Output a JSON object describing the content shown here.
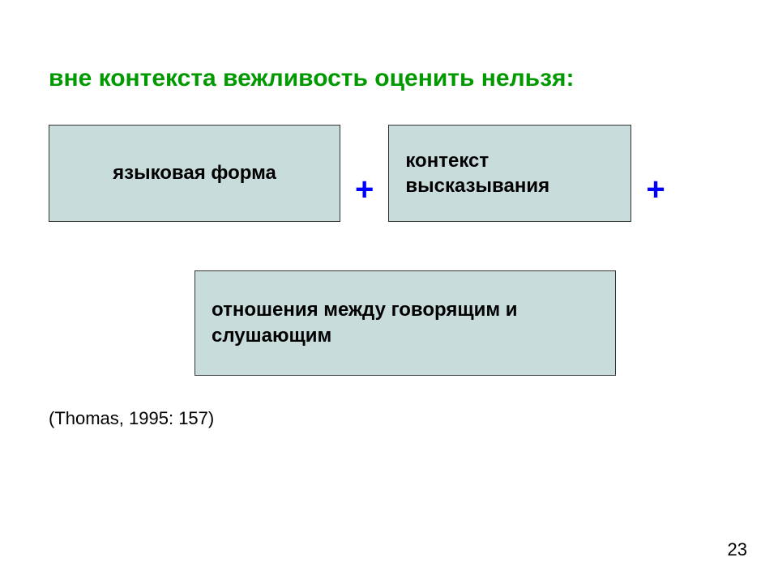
{
  "title": "вне контекста вежливость оценить нельзя:",
  "box1_text": "языковая форма",
  "plus1": "+",
  "box2_text": "контекст высказывания",
  "plus2": "+",
  "box3_text": "отношения между говорящим и слушающим",
  "citation": "(Thomas, 1995: 157)",
  "page_number": "23",
  "colors": {
    "title_color": "#009900",
    "plus_color": "#0000ff",
    "box_fill": "#c9dcdc",
    "box_border": "#333333",
    "text_color": "#000000",
    "background": "#ffffff"
  },
  "layout": {
    "slide_width": 960,
    "slide_height": 720,
    "box1_size": [
      360,
      120
    ],
    "box2_size": [
      300,
      120
    ],
    "box3_size": [
      520,
      130
    ],
    "title_fontsize": 30,
    "box_fontsize": 24,
    "plus_fontsize": 40,
    "citation_fontsize": 22
  }
}
